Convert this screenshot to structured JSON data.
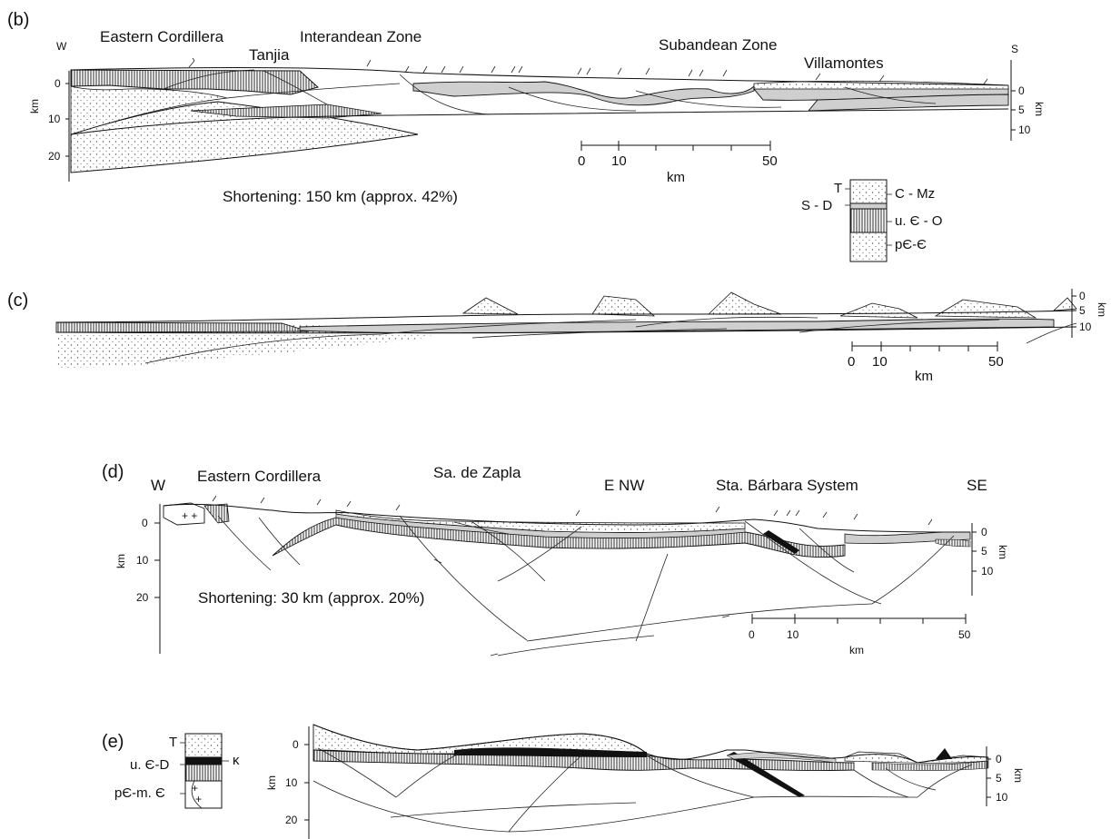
{
  "panels": {
    "b": {
      "letter": "(b)",
      "left_dir": "W",
      "right_dir": "S",
      "labels": {
        "eastern_cordillera": "Eastern Cordillera",
        "tanjia": "Tanjia",
        "interandean": "Interandean Zone",
        "subandean": "Subandean Zone",
        "villamontes": "Villamontes"
      },
      "depth_axis_left": {
        "unit": "km",
        "ticks": [
          "0",
          "10",
          "20"
        ]
      },
      "depth_axis_right": {
        "unit": "km",
        "ticks": [
          "0",
          "5",
          "10"
        ]
      },
      "scale_bar": {
        "ticks": [
          "0",
          "10",
          "50"
        ],
        "unit": "km"
      },
      "shortening": "Shortening: 150 km (approx. 42%)",
      "legend": {
        "t": "T",
        "sd": "S - D",
        "cmz": "C - Mz",
        "uco": "u. Є - O",
        "pc": "pЄ-Є"
      }
    },
    "c": {
      "letter": "(c)",
      "depth_axis_right": {
        "unit": "km",
        "ticks": [
          "0",
          "5",
          "10"
        ]
      },
      "scale_bar": {
        "ticks": [
          "0",
          "10",
          "50"
        ],
        "unit": "km"
      }
    },
    "d": {
      "letter": "(d)",
      "left_dir": "W",
      "labels": {
        "eastern_cordillera": "Eastern Cordillera",
        "zapla": "Sa. de Zapla",
        "e_nw": "E  NW",
        "santa_barbara": "Sta. Bárbara System",
        "se": "SE"
      },
      "depth_axis_left": {
        "unit": "km",
        "ticks": [
          "0",
          "10",
          "20"
        ]
      },
      "depth_axis_right": {
        "unit": "km",
        "ticks": [
          "0",
          "5",
          "10"
        ]
      },
      "scale_bar": {
        "ticks": [
          "0",
          "10",
          "50"
        ],
        "unit": "km"
      },
      "shortening": "Shortening: 30 km (approx. 20%)"
    },
    "e": {
      "letter": "(e)",
      "legend": {
        "t": "T",
        "ucd": "u. Є-D",
        "kappa": "κ",
        "pc": "pЄ-m. Є"
      },
      "depth_axis_left": {
        "unit": "km",
        "ticks": [
          "0",
          "10",
          "20"
        ]
      },
      "depth_axis_right": {
        "unit": "km",
        "ticks": [
          "0",
          "5",
          "10"
        ]
      }
    }
  },
  "colors": {
    "line": "#111111",
    "grey_fill": "#cfcfcf",
    "stipple": "#555555"
  }
}
